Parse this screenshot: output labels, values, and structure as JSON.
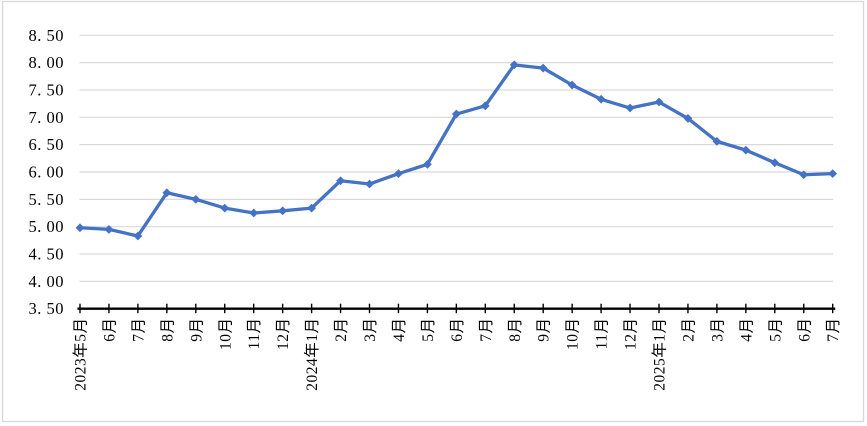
{
  "chart": {
    "kind": "excel-style-line-chart",
    "title": "",
    "legend": "none",
    "style": {
      "line_color": "#4472C4",
      "marker_color": "#4472C4",
      "marker_shape": "diamond",
      "gridline_color": "#D9D9D9",
      "axis_color": "#000000",
      "text_color": "#000000",
      "border_color": "#D9D9D9",
      "background": "#FFFFFF"
    }
  },
  "chart_data": {
    "type": "line",
    "title": "",
    "xlabel": "",
    "ylabel": "",
    "grid": true,
    "legend_position": "none",
    "ylim": [
      3.5,
      8.5
    ],
    "y_tick_interval": 0.5,
    "y_tick_labels": [
      "8. 50",
      "8. 00",
      "7. 50",
      "7. 00",
      "6. 50",
      "6. 00",
      "5. 50",
      "5. 00",
      "4. 50",
      "4. 00",
      "3. 50"
    ],
    "categories": [
      "2023年5月",
      "6月",
      "7月",
      "8月",
      "9月",
      "10月",
      "11月",
      "12月",
      "2024年1月",
      "2月",
      "3月",
      "4月",
      "5月",
      "6月",
      "7月",
      "8月",
      "9月",
      "10月",
      "11月",
      "12月",
      "2025年1月",
      "2月",
      "3月",
      "4月",
      "5月",
      "6月",
      "7月"
    ],
    "series": [
      {
        "name": "",
        "values": [
          4.98,
          4.95,
          4.83,
          5.62,
          5.5,
          5.34,
          5.25,
          5.29,
          5.34,
          5.84,
          5.78,
          5.97,
          6.14,
          7.06,
          7.21,
          7.96,
          7.9,
          7.59,
          7.33,
          7.17,
          7.28,
          6.98,
          6.56,
          6.4,
          6.17,
          5.95,
          5.97
        ]
      }
    ],
    "x_axis": {
      "label_rotation_degrees": 90,
      "tick_marks": "at-each-category"
    }
  }
}
